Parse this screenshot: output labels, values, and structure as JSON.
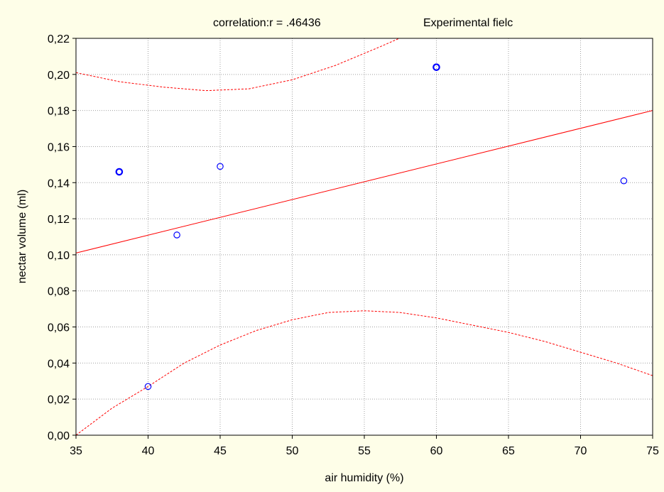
{
  "chart_data": {
    "type": "scatter",
    "title_left": "correlation:r = .46436",
    "title_right": "Experimental fielc",
    "xlabel": "air humidity (%)",
    "ylabel": "nectar volume (ml)",
    "xlim": [
      35,
      75
    ],
    "ylim": [
      0,
      0.22
    ],
    "x_ticks": [
      35,
      40,
      45,
      50,
      55,
      60,
      65,
      70,
      75
    ],
    "x_tick_labels": [
      "35",
      "40",
      "45",
      "50",
      "55",
      "60",
      "65",
      "70",
      "75"
    ],
    "y_ticks": [
      0,
      0.02,
      0.04,
      0.06,
      0.08,
      0.1,
      0.12,
      0.14,
      0.16,
      0.18,
      0.2,
      0.22
    ],
    "y_tick_labels": [
      "0,00",
      "0,02",
      "0,04",
      "0,06",
      "0,08",
      "0,10",
      "0,12",
      "0,14",
      "0,16",
      "0,18",
      "0,20",
      "0,22"
    ],
    "grid": true,
    "points": [
      {
        "x": 38,
        "y": 0.146,
        "multiple": true
      },
      {
        "x": 40,
        "y": 0.027,
        "multiple": false
      },
      {
        "x": 42,
        "y": 0.111,
        "multiple": false
      },
      {
        "x": 45,
        "y": 0.149,
        "multiple": false
      },
      {
        "x": 60,
        "y": 0.204,
        "multiple": true
      },
      {
        "x": 73,
        "y": 0.141,
        "multiple": false
      }
    ],
    "regression_line": {
      "x": [
        35,
        75
      ],
      "y": [
        0.101,
        0.18
      ]
    },
    "confidence_upper": {
      "x": [
        35,
        38,
        41,
        44,
        47,
        50,
        53,
        56,
        58
      ],
      "y": [
        0.201,
        0.196,
        0.193,
        0.191,
        0.192,
        0.197,
        0.205,
        0.215,
        0.222
      ]
    },
    "confidence_lower": {
      "x": [
        35,
        37.5,
        40,
        42.5,
        45,
        47.5,
        50,
        52.5,
        55,
        57.5,
        60,
        62.5,
        65,
        67.5,
        70,
        72.5,
        75
      ],
      "y": [
        0.0,
        0.015,
        0.027,
        0.04,
        0.05,
        0.058,
        0.064,
        0.068,
        0.069,
        0.068,
        0.065,
        0.061,
        0.057,
        0.052,
        0.046,
        0.04,
        0.033
      ]
    },
    "colors": {
      "background": "#fefee8",
      "plot_area": "#ffffff",
      "points": "#0000ff",
      "regression": "#ff0000",
      "grid": "#a0a0a0"
    }
  }
}
